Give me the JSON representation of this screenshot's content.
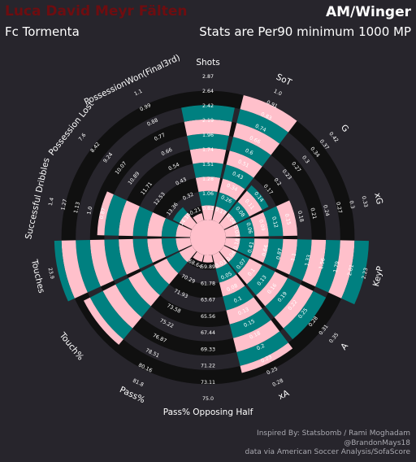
{
  "header": {
    "player_name": "Luca David Meyr Fälten",
    "position": "AM/Winger",
    "team": "Fc Tormenta",
    "note": "Stats are Per90 minimum 1000 MP"
  },
  "footer": {
    "line1": "Inspired By: Statsbomb / Rami Moghadam",
    "line2": "@BrandonMays18",
    "line3": "data via American Soccer Analysis/SofaScore"
  },
  "colors": {
    "background": "#27252c",
    "ring_dark": "#101010",
    "bar_teal": "#008080",
    "bar_pink": "#ffc0cb",
    "player_name": "#6e0d10"
  },
  "chart_data": {
    "type": "radar-bar",
    "rings": 10,
    "metrics": [
      {
        "name": "Shots",
        "ticks": [
          "0.83",
          "1.06",
          "1.28",
          "1.51",
          "1.74",
          "1.96",
          "2.19",
          "2.42",
          "2.64",
          "2.87"
        ],
        "value": 2.42
      },
      {
        "name": "SoT",
        "ticks": [
          "0.17",
          "0.26",
          "0.34",
          "0.43",
          "0.51",
          "0.6",
          "0.66",
          "0.74",
          "0.83",
          "0.91",
          "1.0"
        ],
        "value": 0.91
      },
      {
        "name": "G",
        "ticks": [
          "0.04",
          "0.08",
          "0.11",
          "0.14",
          "0.17",
          "0.2",
          "0.23",
          "0.27",
          "0.3",
          "0.34",
          "0.37",
          "0.42"
        ],
        "value": 0.15
      },
      {
        "name": "xG",
        "ticks": [
          "0.03",
          "0.06",
          "0.09",
          "0.12",
          "0.15",
          "0.18",
          "0.21",
          "0.24",
          "0.27",
          "0.3",
          "0.33"
        ],
        "value": 0.14
      },
      {
        "name": "KeyP",
        "ticks": [
          "0.18",
          "0.41",
          "0.64",
          "0.87",
          "1.1",
          "1.33",
          "1.56",
          "1.79",
          "2.01",
          "2.23"
        ],
        "value": 2.23
      },
      {
        "name": "A",
        "ticks": [
          "0.04",
          "0.07",
          "0.1",
          "0.13",
          "0.16",
          "0.19",
          "0.22",
          "0.25",
          "0.28",
          "0.31",
          "0.35"
        ],
        "value": 0.25
      },
      {
        "name": "xA",
        "ticks": [
          "0.03",
          "0.05",
          "0.08",
          "0.1",
          "0.13",
          "0.15",
          "0.18",
          "0.2",
          "0.23",
          "0.25",
          "0.28"
        ],
        "value": 0.23
      },
      {
        "name": "Pass% Opposing Half",
        "ticks": [
          "59.89",
          "61.78",
          "63.67",
          "65.56",
          "67.44",
          "69.33",
          "71.22",
          "73.11",
          "75.0"
        ],
        "value": 59.89
      },
      {
        "name": "Pass%",
        "ticks": [
          "68.64",
          "70.29",
          "71.93",
          "73.58",
          "75.22",
          "76.87",
          "78.51",
          "80.16",
          "81.8"
        ],
        "value": 68.64
      },
      {
        "name": "Touch%",
        "ticks": [
          "",
          "",
          "",
          "",
          "",
          "",
          "",
          "",
          ""
        ],
        "value": 82
      },
      {
        "name": "Touches",
        "ticks": [
          "",
          "",
          "",
          "",
          "",
          "",
          "",
          "",
          "",
          "23.9"
        ],
        "value": 21
      },
      {
        "name": "Successful Dribbles",
        "ticks": [
          "",
          "",
          "",
          "",
          "",
          "",
          "0.87",
          "1.0",
          "1.13",
          "1.27",
          "1.4"
        ],
        "value": 0.87
      },
      {
        "name": "Possession Lost",
        "ticks": [
          "14.18",
          "13.36",
          "12.53",
          "11.71",
          "10.89",
          "10.07",
          "9.24",
          "8.42",
          "7.6"
        ],
        "value": 13.36
      },
      {
        "name": "PossessionWon(Final3rd)",
        "ticks": [
          "0.21",
          "0.32",
          "0.43",
          "0.54",
          "0.66",
          "0.77",
          "0.88",
          "0.99",
          "1.1"
        ],
        "value": 0.25
      }
    ],
    "bar_fraction": [
      0.8,
      0.9,
      0.35,
      0.5,
      1.0,
      0.8,
      0.85,
      0.05,
      0.05,
      0.85,
      0.95,
      0.65,
      0.15,
      0.05
    ]
  }
}
